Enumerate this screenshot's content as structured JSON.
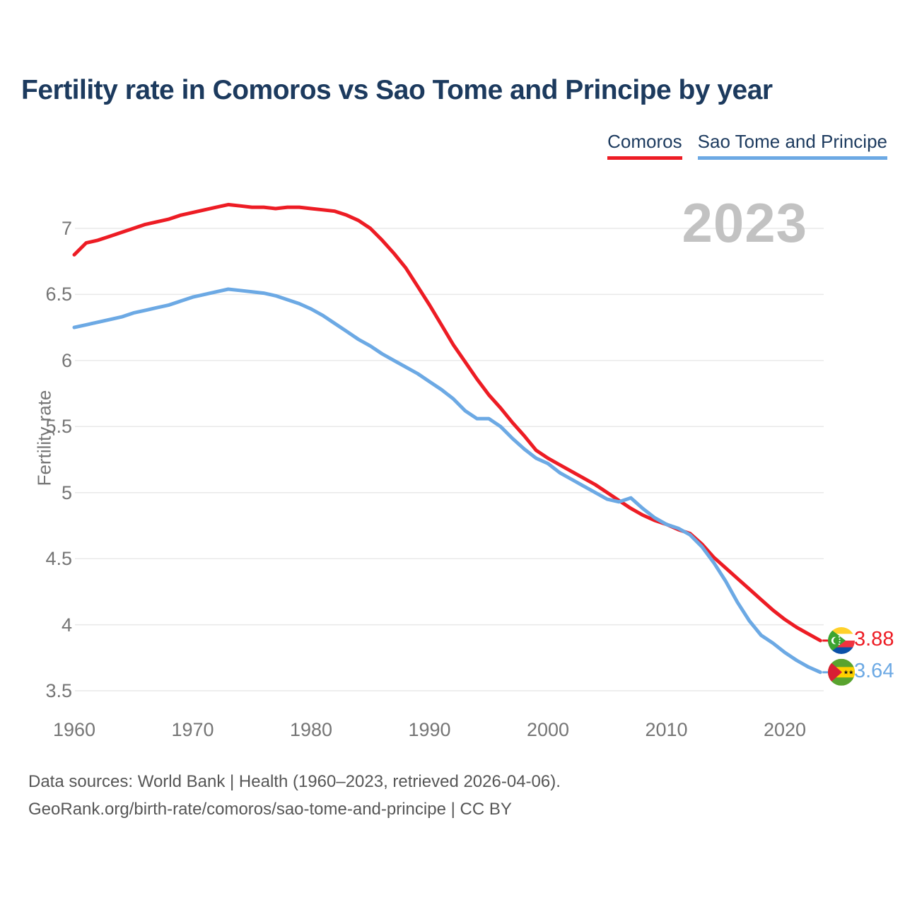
{
  "title": "Fertility rate in Comoros vs Sao Tome and Principe by year",
  "watermark": "2023",
  "legend": {
    "items": [
      {
        "label": "Comoros",
        "color": "#ED1C24"
      },
      {
        "label": "Sao Tome and Principe",
        "color": "#6CA9E4"
      }
    ]
  },
  "footer": {
    "line1": "Data sources: World Bank | Health (1960–2023, retrieved 2026-04-06).",
    "line2": "GeoRank.org/birth-rate/comoros/sao-tome-and-principe | CC BY"
  },
  "chart_data": {
    "type": "line",
    "title": "Fertility rate in Comoros vs Sao Tome and Principe by year",
    "xlabel": "",
    "ylabel": "Fertility rate",
    "x_start": 1960,
    "x_end": 2023,
    "xticks": [
      1960,
      1970,
      1980,
      1990,
      2000,
      2010,
      2020
    ],
    "yticks": [
      7,
      6.5,
      6,
      5.5,
      5,
      4.5,
      4,
      3.5
    ],
    "ylim": [
      3.5,
      7.2
    ],
    "grid": "horizontal",
    "legend_position": "top-right",
    "gridline_color": "#E9E9E9",
    "series": [
      {
        "name": "Comoros",
        "color": "#ED1C24",
        "end_label": "3.88",
        "flag": "comoros",
        "values": [
          6.8,
          6.89,
          6.91,
          6.94,
          6.97,
          7.0,
          7.03,
          7.05,
          7.07,
          7.1,
          7.12,
          7.14,
          7.16,
          7.18,
          7.17,
          7.16,
          7.16,
          7.15,
          7.16,
          7.16,
          7.15,
          7.14,
          7.13,
          7.1,
          7.06,
          7.0,
          6.91,
          6.81,
          6.7,
          6.56,
          6.42,
          6.27,
          6.12,
          5.99,
          5.86,
          5.74,
          5.64,
          5.53,
          5.43,
          5.32,
          5.26,
          5.21,
          5.16,
          5.11,
          5.06,
          5.0,
          4.94,
          4.88,
          4.83,
          4.79,
          4.76,
          4.72,
          4.69,
          4.61,
          4.51,
          4.43,
          4.35,
          4.27,
          4.19,
          4.11,
          4.04,
          3.98,
          3.93,
          3.88
        ]
      },
      {
        "name": "Sao Tome and Principe",
        "color": "#6CA9E4",
        "end_label": "3.64",
        "flag": "saotome",
        "values": [
          6.25,
          6.27,
          6.29,
          6.31,
          6.33,
          6.36,
          6.38,
          6.4,
          6.42,
          6.45,
          6.48,
          6.5,
          6.52,
          6.54,
          6.53,
          6.52,
          6.51,
          6.49,
          6.46,
          6.43,
          6.39,
          6.34,
          6.28,
          6.22,
          6.16,
          6.11,
          6.05,
          6.0,
          5.95,
          5.9,
          5.84,
          5.78,
          5.71,
          5.62,
          5.56,
          5.56,
          5.5,
          5.41,
          5.33,
          5.26,
          5.22,
          5.15,
          5.1,
          5.05,
          5.0,
          4.95,
          4.93,
          4.96,
          4.88,
          4.81,
          4.76,
          4.73,
          4.68,
          4.59,
          4.47,
          4.33,
          4.17,
          4.03,
          3.92,
          3.86,
          3.79,
          3.73,
          3.68,
          3.64
        ]
      }
    ]
  }
}
